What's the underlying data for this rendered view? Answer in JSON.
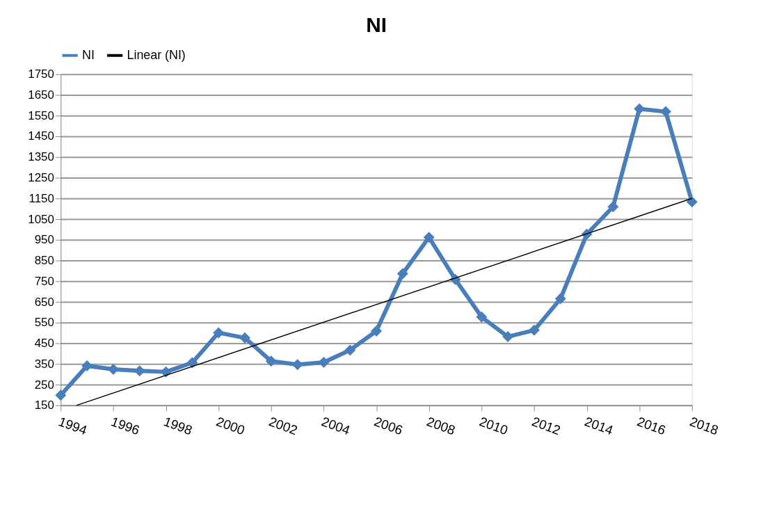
{
  "chart_data": {
    "type": "line",
    "title": "NI",
    "x": [
      1994,
      1995,
      1996,
      1997,
      1998,
      1999,
      2000,
      2001,
      2002,
      2003,
      2004,
      2005,
      2006,
      2007,
      2008,
      2009,
      2010,
      2011,
      2012,
      2013,
      2014,
      2015,
      2016,
      2017,
      2018
    ],
    "series": [
      {
        "name": "NI",
        "color": "#4a7ebb",
        "values": [
          199,
          341,
          324,
          317,
          312,
          356,
          501,
          476,
          364,
          347,
          358,
          417,
          509,
          786,
          962,
          759,
          577,
          482,
          513,
          665,
          977,
          1110,
          1583,
          1569,
          1133
        ]
      },
      {
        "name": "Linear (NI)",
        "type": "line",
        "color": "#000000",
        "marker": "none",
        "x": [
          1994.6,
          2018
        ],
        "values": [
          150,
          1150
        ]
      }
    ],
    "xlim": [
      1994,
      2018
    ],
    "xticks": [
      1994,
      1996,
      1998,
      2000,
      2002,
      2004,
      2006,
      2008,
      2010,
      2012,
      2014,
      2016,
      2018
    ],
    "ylim": [
      150,
      1750
    ],
    "yticks": [
      150,
      250,
      350,
      450,
      550,
      650,
      750,
      850,
      950,
      1050,
      1150,
      1250,
      1350,
      1450,
      1550,
      1650,
      1750
    ],
    "grid": "y",
    "legend": "top",
    "marker": "diamond",
    "line_style": "solid"
  }
}
